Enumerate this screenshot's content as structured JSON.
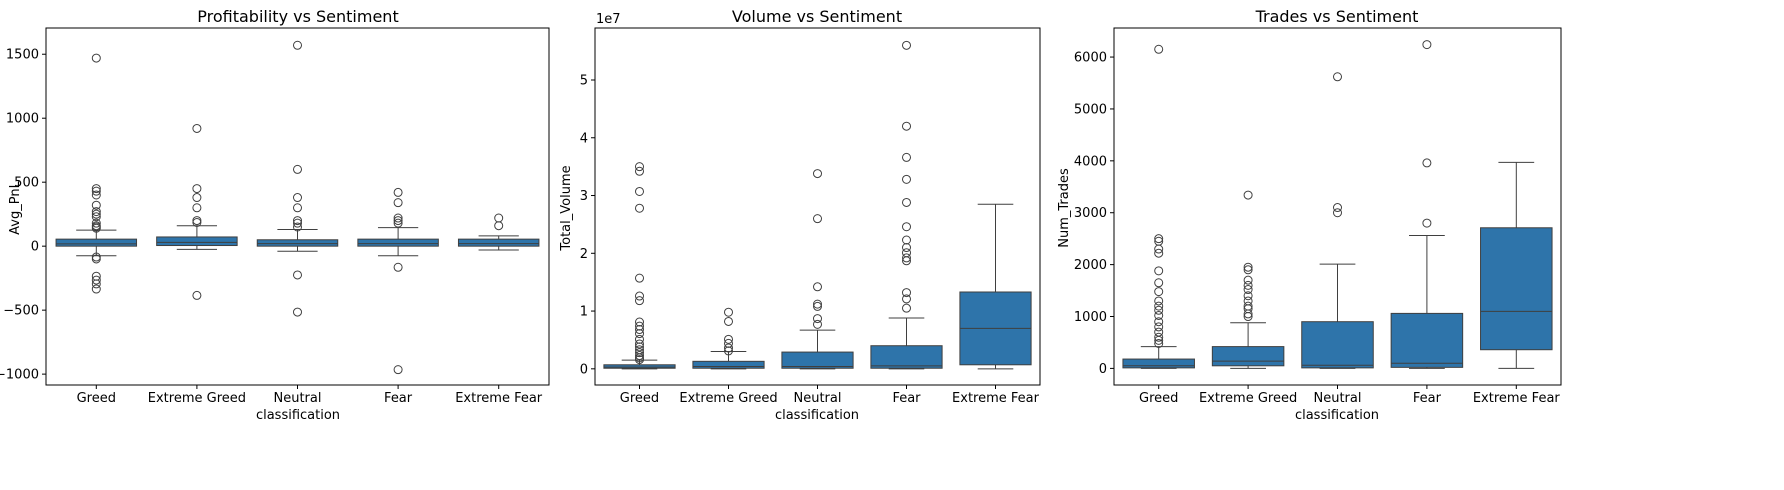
{
  "chart_data": [
    {
      "type": "box",
      "title": "Profitability vs Sentiment",
      "xlabel": "classification",
      "ylabel": "Avg_PnL",
      "categories": [
        "Greed",
        "Extreme Greed",
        "Neutral",
        "Fear",
        "Extreme Fear"
      ],
      "ylim": [
        -1085,
        1705
      ],
      "yticks": [
        -1000,
        -500,
        0,
        500,
        1000,
        1500
      ],
      "color": "#2e74aa",
      "boxes": [
        {
          "q1": 0,
          "median": 18,
          "q3": 55,
          "whisker_low": -75,
          "whisker_high": 125,
          "outliers": [
            1470,
            450,
            430,
            400,
            320,
            270,
            250,
            230,
            180,
            160,
            150,
            140,
            -85,
            -100,
            -235,
            -265,
            -295,
            -335
          ]
        },
        {
          "q1": 5,
          "median": 30,
          "q3": 72,
          "whisker_low": -25,
          "whisker_high": 160,
          "outliers": [
            920,
            450,
            380,
            300,
            200,
            185,
            -385
          ]
        },
        {
          "q1": 0,
          "median": 20,
          "q3": 50,
          "whisker_low": -40,
          "whisker_high": 130,
          "outliers": [
            1570,
            600,
            380,
            300,
            200,
            180,
            150,
            -225,
            -515
          ]
        },
        {
          "q1": 0,
          "median": 20,
          "q3": 55,
          "whisker_low": -75,
          "whisker_high": 145,
          "outliers": [
            420,
            340,
            220,
            200,
            180,
            -165,
            -965
          ]
        },
        {
          "q1": 0,
          "median": 20,
          "q3": 55,
          "whisker_low": -30,
          "whisker_high": 80,
          "outliers": [
            220,
            160
          ]
        }
      ]
    },
    {
      "type": "box",
      "title": "Volume vs Sentiment",
      "xlabel": "classification",
      "ylabel": "Total_Volume",
      "offset_text": "1e7",
      "categories": [
        "Greed",
        "Extreme Greed",
        "Neutral",
        "Fear",
        "Extreme Fear"
      ],
      "ylim": [
        -2800000,
        59000000
      ],
      "yticks": [
        0,
        10000000,
        20000000,
        30000000,
        40000000,
        50000000
      ],
      "ytick_labels": [
        "0",
        "1",
        "2",
        "3",
        "4",
        "5"
      ],
      "color": "#2e74aa",
      "boxes": [
        {
          "q1": 100000,
          "median": 300000,
          "q3": 700000,
          "whisker_low": 0,
          "whisker_high": 1500000,
          "outliers": [
            35000000,
            34200000,
            30700000,
            27800000,
            15700000,
            12600000,
            11800000,
            8100000,
            7400000,
            6800000,
            6100000,
            5100000,
            4300000,
            3800000,
            3300000,
            2800000,
            2300000,
            1900000,
            1600000
          ]
        },
        {
          "q1": 100000,
          "median": 400000,
          "q3": 1300000,
          "whisker_low": 0,
          "whisker_high": 3000000,
          "outliers": [
            9800000,
            8200000,
            5100000,
            4400000,
            3600000,
            3100000
          ]
        },
        {
          "q1": 100000,
          "median": 400000,
          "q3": 2900000,
          "whisker_low": 0,
          "whisker_high": 6700000,
          "outliers": [
            33800000,
            26000000,
            14200000,
            11200000,
            10800000,
            8700000,
            7700000
          ]
        },
        {
          "q1": 100000,
          "median": 500000,
          "q3": 4000000,
          "whisker_low": 0,
          "whisker_high": 8800000,
          "outliers": [
            56000000,
            42000000,
            36600000,
            32800000,
            28800000,
            24600000,
            22300000,
            21000000,
            20100000,
            19200000,
            18700000,
            13200000,
            12100000,
            10500000
          ]
        },
        {
          "q1": 700000,
          "median": 7000000,
          "q3": 13300000,
          "whisker_low": 0,
          "whisker_high": 28500000,
          "outliers": []
        }
      ]
    },
    {
      "type": "box",
      "title": "Trades vs Sentiment",
      "xlabel": "classification",
      "ylabel": "Num_Trades",
      "categories": [
        "Greed",
        "Extreme Greed",
        "Neutral",
        "Fear",
        "Extreme Fear"
      ],
      "ylim": [
        -320,
        6560
      ],
      "yticks": [
        0,
        1000,
        2000,
        3000,
        4000,
        5000,
        6000
      ],
      "color": "#2e74aa",
      "boxes": [
        {
          "q1": 10,
          "median": 50,
          "q3": 180,
          "whisker_low": 0,
          "whisker_high": 420,
          "outliers": [
            6150,
            2500,
            2450,
            2300,
            2220,
            1880,
            1650,
            1480,
            1300,
            1200,
            1120,
            1020,
            900,
            800,
            700,
            600,
            540,
            480
          ]
        },
        {
          "q1": 50,
          "median": 140,
          "q3": 420,
          "whisker_low": 0,
          "whisker_high": 880,
          "outliers": [
            3340,
            1950,
            1900,
            1700,
            1600,
            1520,
            1400,
            1300,
            1200,
            1150,
            1050,
            1000
          ]
        },
        {
          "q1": 10,
          "median": 60,
          "q3": 900,
          "whisker_low": 0,
          "whisker_high": 2010,
          "outliers": [
            5620,
            3100,
            3000
          ]
        },
        {
          "q1": 20,
          "median": 100,
          "q3": 1060,
          "whisker_low": 0,
          "whisker_high": 2560,
          "outliers": [
            6240,
            3960,
            2800
          ]
        },
        {
          "q1": 360,
          "median": 1100,
          "q3": 2710,
          "whisker_low": 0,
          "whisker_high": 3970,
          "outliers": []
        }
      ]
    }
  ]
}
